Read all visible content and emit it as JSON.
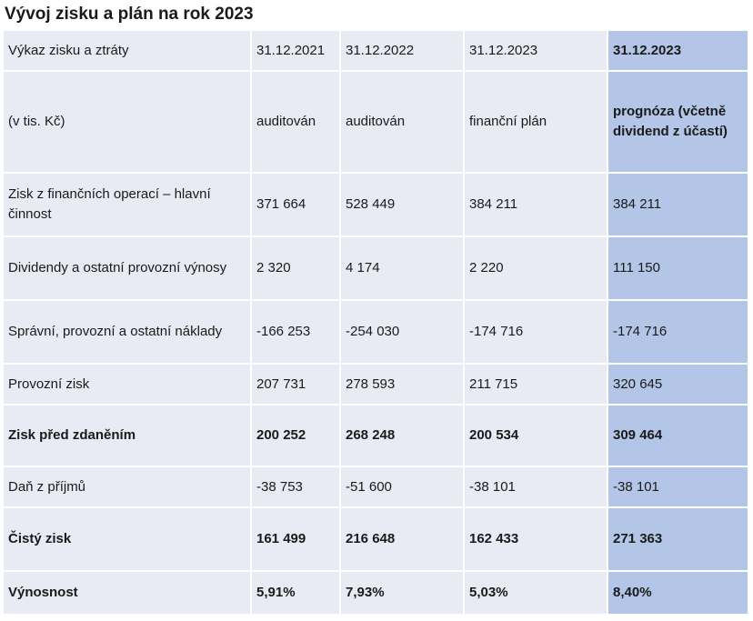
{
  "title": "Vývoj zisku a plán na rok 2023",
  "table": {
    "header_rows": [
      [
        "Výkaz zisku a ztráty",
        "31.12.2021",
        "31.12.2022",
        "31.12.2023",
        "31.12.2023"
      ],
      [
        "(v tis. Kč)",
        "auditován",
        "auditován",
        "finanční plán",
        "prognóza (včetně dividend z účastí)"
      ]
    ],
    "rows": [
      {
        "label": "Zisk z finančních operací – hlavní činnost",
        "values": [
          "371 664",
          "528 449",
          "384 211",
          "384 211"
        ],
        "bold": false
      },
      {
        "label": "Dividendy a ostatní provozní výnosy",
        "values": [
          "2 320",
          "4 174",
          "2 220",
          "111 150"
        ],
        "bold": false
      },
      {
        "label": "Správní, provozní a ostatní náklady",
        "values": [
          "-166 253",
          "-254 030",
          "-174 716",
          "-174 716"
        ],
        "bold": false
      },
      {
        "label": "Provozní zisk",
        "values": [
          "207 731",
          "278 593",
          "211 715",
          "320 645"
        ],
        "bold": false
      },
      {
        "label": "Zisk před zdaněním",
        "values": [
          "200 252",
          "268 248",
          "200 534",
          "309 464"
        ],
        "bold": true
      },
      {
        "label": "Daň z příjmů",
        "values": [
          "-38 753",
          "-51 600",
          "-38 101",
          "-38 101"
        ],
        "bold": false
      },
      {
        "label": "Čistý zisk",
        "values": [
          "161 499",
          "216 648",
          "162 433",
          "271 363"
        ],
        "bold": true
      },
      {
        "label": "Výnosnost",
        "values": [
          "5,91%",
          "7,93%",
          "5,03%",
          "8,40%"
        ],
        "bold": true
      }
    ]
  },
  "colors": {
    "cell_background": "#e8ebf3",
    "highlight_column": "#b4c6e7",
    "grid_lines": "#ffffff"
  }
}
